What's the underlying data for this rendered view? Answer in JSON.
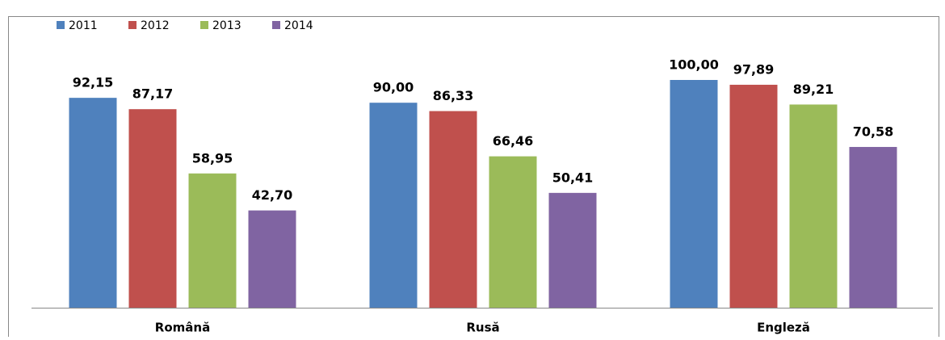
{
  "chart_data": {
    "type": "bar",
    "categories": [
      "Română",
      "Rusă",
      "Engleză"
    ],
    "series": [
      {
        "name": "2011",
        "color": "#4f81bd",
        "values": [
          92.15,
          90.0,
          100.0
        ],
        "value_labels": [
          "92,15",
          "90,00",
          "100,00"
        ]
      },
      {
        "name": "2012",
        "color": "#c0504d",
        "values": [
          87.17,
          86.33,
          97.89
        ],
        "value_labels": [
          "87,17",
          "86,33",
          "97,89"
        ]
      },
      {
        "name": "2013",
        "color": "#9bbb59",
        "values": [
          58.95,
          66.46,
          89.21
        ],
        "value_labels": [
          "58,95",
          "66,46",
          "89,21"
        ]
      },
      {
        "name": "2014",
        "color": "#8064a2",
        "values": [
          42.7,
          50.41,
          70.58
        ],
        "value_labels": [
          "42,70",
          "50,41",
          "70,58"
        ]
      }
    ],
    "ylim": [
      0,
      100
    ],
    "legend": "top-left"
  }
}
